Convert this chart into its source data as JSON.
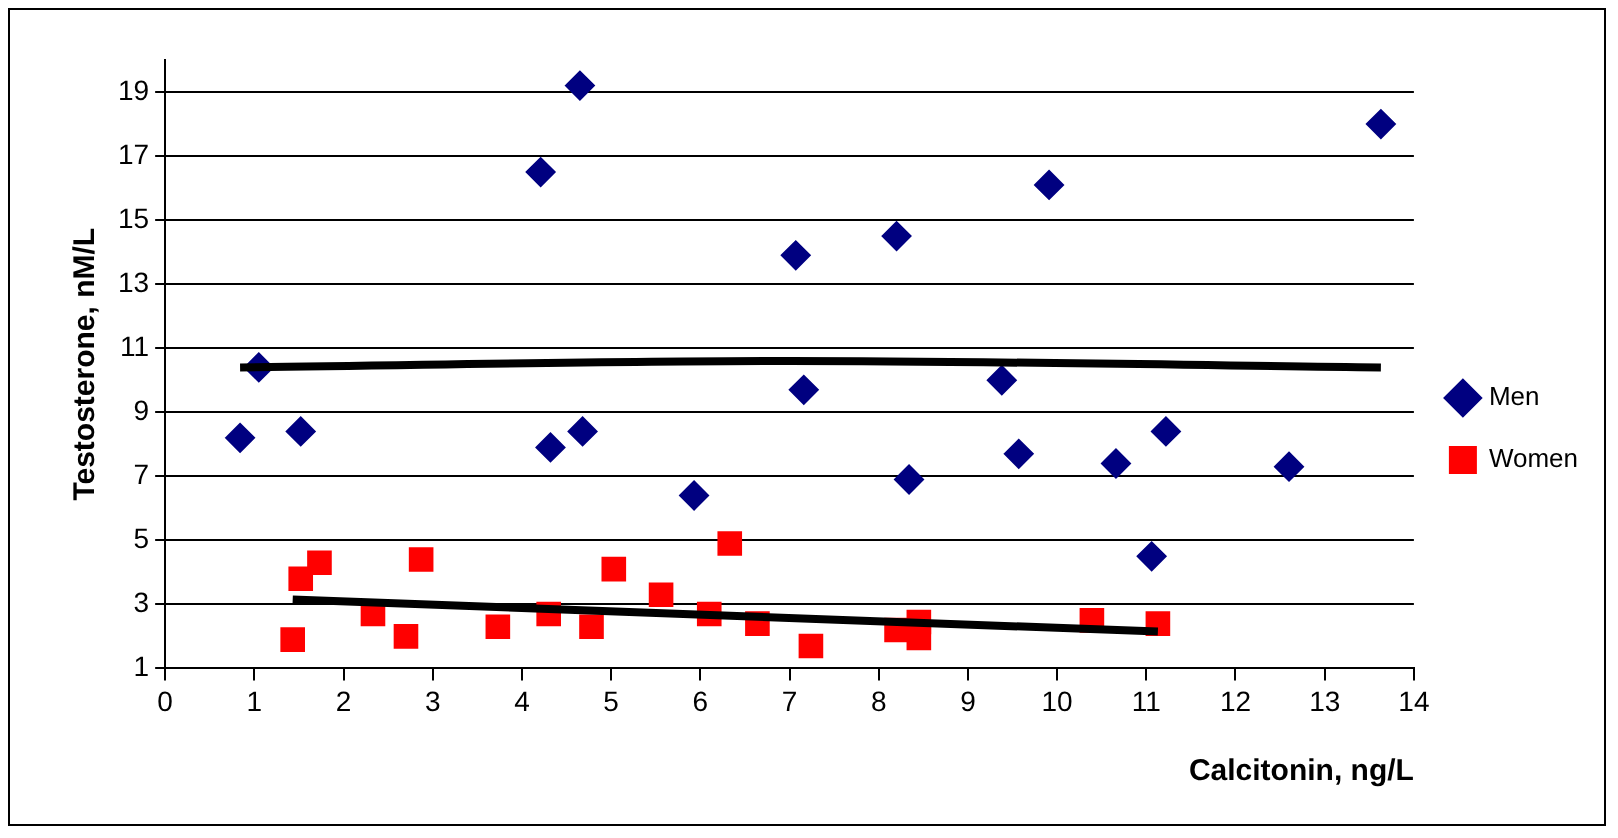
{
  "chart_data": {
    "type": "scatter",
    "xlabel": "Calcitonin, ng/L",
    "ylabel": "Testosterone, nM/L",
    "xlim": [
      0,
      14
    ],
    "xticks": [
      0,
      1,
      2,
      3,
      4,
      5,
      6,
      7,
      8,
      9,
      10,
      11,
      12,
      13,
      14
    ],
    "ylim": [
      1,
      20
    ],
    "yticks": [
      1,
      3,
      5,
      7,
      9,
      11,
      13,
      15,
      17,
      19
    ],
    "grid": "y",
    "legend": "right",
    "series": [
      {
        "name": "Men",
        "marker": "diamond",
        "color": "#000080",
        "x": [
          0.84,
          1.05,
          1.52,
          4.21,
          4.65,
          4.32,
          4.68,
          5.93,
          7.07,
          7.16,
          8.2,
          8.34,
          9.38,
          9.57,
          9.91,
          10.66,
          11.06,
          11.22,
          12.6,
          13.63
        ],
        "values": [
          8.2,
          10.4,
          8.4,
          16.5,
          19.2,
          7.9,
          8.4,
          6.4,
          13.9,
          9.7,
          14.5,
          6.9,
          10.0,
          7.7,
          16.1,
          7.4,
          4.5,
          8.4,
          7.3,
          18.0
        ]
      },
      {
        "name": "Women",
        "marker": "square",
        "color": "#ff0000",
        "x": [
          1.43,
          1.52,
          1.73,
          2.33,
          2.7,
          2.87,
          3.73,
          4.3,
          4.78,
          5.03,
          5.56,
          6.1,
          6.33,
          6.64,
          7.24,
          8.2,
          8.45,
          8.45,
          10.39,
          11.13
        ],
        "values": [
          1.9,
          3.8,
          4.3,
          2.7,
          2.0,
          4.4,
          2.3,
          2.7,
          2.3,
          4.1,
          3.3,
          2.7,
          4.9,
          2.4,
          1.7,
          2.2,
          2.45,
          1.95,
          2.5,
          2.4
        ]
      },
      {
        "type": "line",
        "marker": "none",
        "color": "#000000",
        "x": [
          0.84,
          7,
          13.63
        ],
        "values": [
          10.4,
          10.6,
          10.4
        ]
      },
      {
        "type": "line",
        "marker": "none",
        "color": "#000000",
        "x": [
          1.43,
          11.13
        ],
        "values": [
          3.15,
          2.15
        ]
      }
    ]
  }
}
